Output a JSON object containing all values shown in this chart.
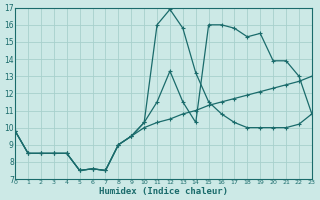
{
  "xlabel": "Humidex (Indice chaleur)",
  "bg_color": "#cce9e6",
  "grid_color": "#a8d0cc",
  "line_color": "#1a6b6b",
  "xlim": [
    0,
    23
  ],
  "ylim": [
    7,
    17
  ],
  "xticks": [
    0,
    1,
    2,
    3,
    4,
    5,
    6,
    7,
    8,
    9,
    10,
    11,
    12,
    13,
    14,
    15,
    16,
    17,
    18,
    19,
    20,
    21,
    22,
    23
  ],
  "yticks": [
    7,
    8,
    9,
    10,
    11,
    12,
    13,
    14,
    15,
    16,
    17
  ],
  "curve_sharp_x": [
    0,
    1,
    2,
    3,
    4,
    5,
    6,
    7,
    8,
    9,
    10,
    11,
    12,
    13,
    14,
    15,
    16,
    17,
    18,
    19,
    20,
    21,
    22,
    23
  ],
  "curve_sharp_y": [
    9.8,
    8.5,
    8.5,
    8.5,
    8.5,
    7.5,
    7.6,
    7.5,
    9.0,
    9.5,
    10.3,
    16.0,
    16.9,
    15.8,
    13.2,
    11.5,
    10.8,
    10.3,
    10.0,
    10.0,
    10.0,
    10.0,
    10.2,
    10.8
  ],
  "curve_mid_x": [
    0,
    1,
    2,
    3,
    4,
    5,
    6,
    7,
    8,
    9,
    10,
    11,
    12,
    13,
    14,
    15,
    16,
    17,
    18,
    19,
    20,
    21,
    22,
    23
  ],
  "curve_mid_y": [
    9.8,
    8.5,
    8.5,
    8.5,
    8.5,
    7.5,
    7.6,
    7.5,
    9.0,
    9.5,
    10.3,
    11.5,
    13.3,
    11.5,
    10.3,
    16.0,
    16.0,
    15.8,
    15.3,
    15.5,
    13.9,
    13.9,
    13.0,
    10.8
  ],
  "curve_flat_x": [
    0,
    1,
    2,
    3,
    4,
    5,
    6,
    7,
    8,
    9,
    10,
    11,
    12,
    13,
    14,
    15,
    16,
    17,
    18,
    19,
    20,
    21,
    22,
    23
  ],
  "curve_flat_y": [
    9.8,
    8.5,
    8.5,
    8.5,
    8.5,
    7.5,
    7.6,
    7.5,
    9.0,
    9.5,
    10.0,
    10.3,
    10.5,
    10.8,
    11.0,
    11.3,
    11.5,
    11.7,
    11.9,
    12.1,
    12.3,
    12.5,
    12.7,
    13.0
  ]
}
